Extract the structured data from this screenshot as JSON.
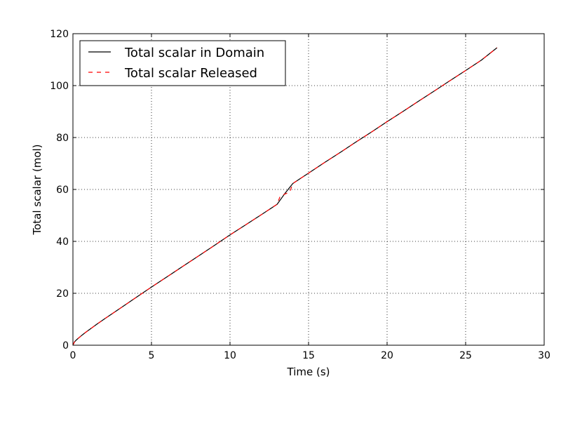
{
  "chart_data": {
    "type": "line",
    "xlabel": "Time (s)",
    "ylabel": "Total scalar (mol)",
    "xlim": [
      0,
      30
    ],
    "ylim": [
      0,
      120
    ],
    "xticks": [
      0,
      5,
      10,
      15,
      20,
      25,
      30
    ],
    "yticks": [
      0,
      20,
      40,
      60,
      80,
      100,
      120
    ],
    "grid": true,
    "grid_style": "dotted",
    "legend_position": "top-left",
    "series": [
      {
        "name": "Total scalar in Domain",
        "color": "#000000",
        "style": "solid",
        "x": [
          0,
          0.1,
          0.25,
          0.5,
          0.75,
          1,
          1.5,
          2,
          3,
          4,
          5,
          6,
          7,
          8,
          9,
          10,
          11,
          12,
          13,
          13.5,
          14,
          15,
          16,
          17,
          18,
          19,
          20,
          21,
          22,
          23,
          24,
          25,
          26,
          27
        ],
        "y": [
          0,
          1.3,
          2.2,
          3.5,
          4.7,
          5.8,
          8.0,
          10.1,
          14.2,
          18.3,
          22.4,
          26.4,
          30.4,
          34.4,
          38.4,
          42.5,
          46.4,
          50.3,
          54.3,
          58.5,
          62.3,
          66.3,
          70.3,
          74.2,
          78.2,
          82.1,
          86.1,
          90.0,
          94.0,
          97.9,
          101.9,
          105.8,
          109.8,
          114.6
        ]
      },
      {
        "name": "Total scalar Released",
        "color": "#ff0000",
        "style": "dashed",
        "x": [
          0,
          0.1,
          0.25,
          0.5,
          0.75,
          1,
          1.5,
          2,
          3,
          4,
          5,
          6,
          7,
          8,
          9,
          10,
          11,
          12,
          13,
          13.2,
          13.4,
          13.6,
          13.8,
          14,
          15,
          16,
          17,
          18,
          19,
          20,
          21,
          22,
          23,
          24,
          25,
          26,
          27
        ],
        "y": [
          0,
          1.3,
          2.2,
          3.5,
          4.7,
          5.8,
          8.0,
          10.1,
          14.2,
          18.3,
          22.4,
          26.4,
          30.4,
          34.4,
          38.4,
          42.5,
          46.4,
          50.3,
          54.3,
          57.5,
          58.0,
          58.5,
          59.0,
          62.3,
          66.3,
          70.3,
          74.2,
          78.2,
          82.1,
          86.1,
          90.0,
          94.0,
          97.9,
          101.9,
          105.8,
          109.8,
          114.6
        ]
      }
    ]
  }
}
